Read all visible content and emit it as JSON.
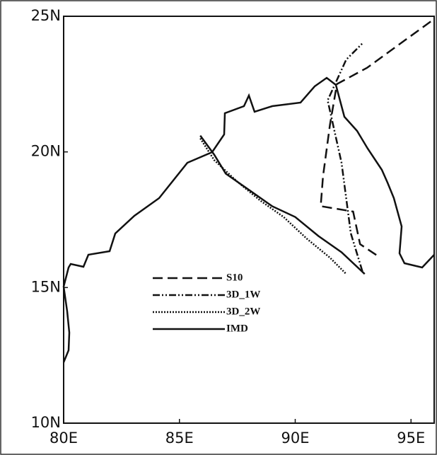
{
  "chart_data": {
    "type": "line",
    "xlim": [
      80,
      96
    ],
    "ylim": [
      10,
      25
    ],
    "xticks": [
      {
        "value": 80,
        "label": "80E"
      },
      {
        "value": 85,
        "label": "85E"
      },
      {
        "value": 90,
        "label": "90E"
      },
      {
        "value": 95,
        "label": "95E"
      }
    ],
    "yticks": [
      {
        "value": 10,
        "label": "10N"
      },
      {
        "value": 15,
        "label": "15N"
      },
      {
        "value": 20,
        "label": "20N"
      },
      {
        "value": 25,
        "label": "25N"
      }
    ],
    "series": [
      {
        "name": "S10",
        "color": "#111111",
        "style": "dashed",
        "x": [
          93.5,
          92.8,
          92.5,
          91.1,
          91.2,
          91.5,
          91.8,
          93.1,
          96.0
        ],
        "values": [
          16.2,
          16.6,
          17.8,
          18.0,
          19.1,
          21.0,
          22.5,
          23.1,
          24.9
        ]
      },
      {
        "name": "3D_1W",
        "color": "#111111",
        "style": "dashdot",
        "x": [
          92.9,
          92.4,
          92.0,
          91.4,
          92.2,
          92.9
        ],
        "values": [
          15.6,
          17.0,
          19.6,
          21.9,
          23.4,
          24.0
        ]
      },
      {
        "name": "3D_2W",
        "color": "#111111",
        "style": "dotted",
        "x": [
          85.9,
          86.5,
          87.5,
          88.5,
          89.5,
          90.5,
          91.5,
          92.2
        ],
        "values": [
          20.5,
          19.7,
          18.9,
          18.2,
          17.6,
          16.8,
          16.1,
          15.5
        ]
      },
      {
        "name": "IMD",
        "color": "#111111",
        "style": "solid",
        "x": [
          85.9,
          86.5,
          87.0,
          88.0,
          89.0,
          90.0,
          91.0,
          92.0,
          93.0
        ],
        "values": [
          20.6,
          19.9,
          19.2,
          18.6,
          18.0,
          17.6,
          16.9,
          16.3,
          15.5
        ]
      }
    ]
  }
}
